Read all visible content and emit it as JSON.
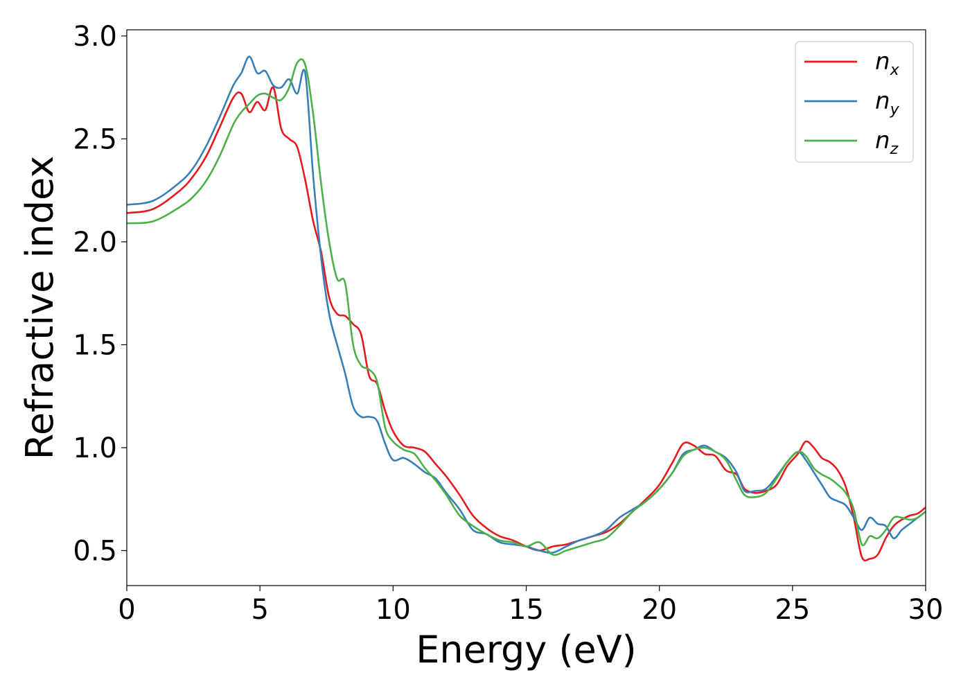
{
  "chart_data": {
    "type": "line",
    "xlabel": "Energy (eV)",
    "ylabel": "Refractive index",
    "xlim": [
      0,
      30
    ],
    "ylim": [
      0.33,
      3.03
    ],
    "xticks": [
      0,
      5,
      10,
      15,
      20,
      25,
      30
    ],
    "xtick_labels": [
      "0",
      "5",
      "10",
      "15",
      "20",
      "25",
      "30"
    ],
    "yticks": [
      0.5,
      1.0,
      1.5,
      2.0,
      2.5,
      3.0
    ],
    "ytick_labels": [
      "0.5",
      "1.0",
      "1.5",
      "2.0",
      "2.5",
      "3.0"
    ],
    "grid": false,
    "legend_position": "top-right",
    "series": [
      {
        "name": "n",
        "subscript": "x",
        "color": "#e41a1c",
        "x": [
          0,
          1,
          2,
          2.5,
          3,
          3.5,
          4,
          4.3,
          4.6,
          4.9,
          5.2,
          5.5,
          5.8,
          6.1,
          6.4,
          6.7,
          7.0,
          7.3,
          7.6,
          7.9,
          8.2,
          8.5,
          8.8,
          9.1,
          9.4,
          9.7,
          10.0,
          10.4,
          10.8,
          11.2,
          11.6,
          12.0,
          12.5,
          13.0,
          13.5,
          14.0,
          14.5,
          15.0,
          15.5,
          16.0,
          16.5,
          17.0,
          17.5,
          18.0,
          18.5,
          19.0,
          19.5,
          20.0,
          20.5,
          20.9,
          21.3,
          21.7,
          22.1,
          22.5,
          22.9,
          23.2,
          23.6,
          24.0,
          24.4,
          24.8,
          25.2,
          25.5,
          25.8,
          26.1,
          26.4,
          26.7,
          27.0,
          27.3,
          27.6,
          27.9,
          28.2,
          28.5,
          28.8,
          29.1,
          29.4,
          29.7,
          30.0
        ],
        "y": [
          2.14,
          2.16,
          2.25,
          2.32,
          2.42,
          2.56,
          2.7,
          2.72,
          2.63,
          2.68,
          2.64,
          2.75,
          2.55,
          2.5,
          2.46,
          2.3,
          2.1,
          1.95,
          1.73,
          1.65,
          1.64,
          1.6,
          1.55,
          1.35,
          1.31,
          1.18,
          1.08,
          1.01,
          1.0,
          0.98,
          0.92,
          0.86,
          0.77,
          0.67,
          0.61,
          0.57,
          0.55,
          0.52,
          0.5,
          0.52,
          0.53,
          0.55,
          0.57,
          0.59,
          0.63,
          0.69,
          0.75,
          0.82,
          0.93,
          1.02,
          1.01,
          0.97,
          0.96,
          0.89,
          0.87,
          0.8,
          0.78,
          0.79,
          0.82,
          0.91,
          0.97,
          1.03,
          1.0,
          0.95,
          0.93,
          0.89,
          0.81,
          0.66,
          0.47,
          0.46,
          0.48,
          0.56,
          0.62,
          0.65,
          0.67,
          0.68,
          0.71
        ]
      },
      {
        "name": "n",
        "subscript": "y",
        "color": "#377eb8",
        "x": [
          0,
          1,
          2,
          2.5,
          3,
          3.5,
          4,
          4.3,
          4.6,
          4.9,
          5.2,
          5.5,
          5.8,
          6.1,
          6.4,
          6.7,
          7.0,
          7.3,
          7.6,
          7.9,
          8.2,
          8.5,
          8.8,
          9.1,
          9.4,
          9.7,
          10.0,
          10.4,
          10.8,
          11.2,
          11.6,
          12.0,
          12.5,
          13.0,
          13.5,
          14.0,
          14.5,
          15.0,
          15.5,
          16.0,
          16.5,
          17.0,
          17.5,
          18.0,
          18.5,
          19.0,
          19.5,
          20.0,
          20.5,
          20.9,
          21.3,
          21.7,
          22.1,
          22.5,
          22.9,
          23.2,
          23.6,
          24.0,
          24.4,
          24.8,
          25.2,
          25.5,
          25.8,
          26.1,
          26.4,
          26.7,
          27.0,
          27.3,
          27.6,
          27.9,
          28.2,
          28.5,
          28.8,
          29.1,
          29.4,
          29.7,
          30.0
        ],
        "y": [
          2.18,
          2.2,
          2.29,
          2.36,
          2.47,
          2.61,
          2.76,
          2.82,
          2.9,
          2.82,
          2.83,
          2.76,
          2.75,
          2.79,
          2.72,
          2.82,
          2.32,
          1.92,
          1.65,
          1.5,
          1.36,
          1.2,
          1.15,
          1.15,
          1.13,
          1.02,
          0.94,
          0.95,
          0.92,
          0.88,
          0.85,
          0.78,
          0.7,
          0.6,
          0.58,
          0.54,
          0.53,
          0.52,
          0.5,
          0.49,
          0.52,
          0.55,
          0.57,
          0.6,
          0.66,
          0.7,
          0.74,
          0.8,
          0.88,
          0.97,
          0.99,
          1.01,
          0.98,
          0.95,
          0.88,
          0.79,
          0.79,
          0.8,
          0.86,
          0.93,
          0.98,
          0.94,
          0.88,
          0.82,
          0.76,
          0.74,
          0.72,
          0.66,
          0.6,
          0.66,
          0.63,
          0.62,
          0.56,
          0.6,
          0.63,
          0.66,
          0.69
        ]
      },
      {
        "name": "n",
        "subscript": "z",
        "color": "#4daf4a",
        "x": [
          0,
          1,
          2,
          2.5,
          3,
          3.5,
          4,
          4.3,
          4.6,
          4.9,
          5.2,
          5.5,
          5.8,
          6.1,
          6.4,
          6.7,
          7.0,
          7.3,
          7.6,
          7.9,
          8.2,
          8.5,
          8.8,
          9.1,
          9.4,
          9.7,
          10.0,
          10.4,
          10.8,
          11.2,
          11.6,
          12.0,
          12.5,
          13.0,
          13.5,
          14.0,
          14.5,
          15.0,
          15.5,
          16.0,
          16.5,
          17.0,
          17.5,
          18.0,
          18.5,
          19.0,
          19.5,
          20.0,
          20.5,
          20.9,
          21.3,
          21.7,
          22.1,
          22.5,
          22.9,
          23.2,
          23.6,
          24.0,
          24.4,
          24.8,
          25.2,
          25.5,
          25.8,
          26.1,
          26.4,
          26.7,
          27.0,
          27.3,
          27.6,
          27.9,
          28.2,
          28.5,
          28.8,
          29.1,
          29.4,
          29.7,
          30.0
        ],
        "y": [
          2.09,
          2.1,
          2.17,
          2.22,
          2.3,
          2.42,
          2.57,
          2.63,
          2.67,
          2.71,
          2.72,
          2.7,
          2.69,
          2.75,
          2.87,
          2.86,
          2.62,
          2.28,
          2.0,
          1.82,
          1.8,
          1.5,
          1.4,
          1.38,
          1.32,
          1.1,
          1.03,
          0.99,
          0.97,
          0.9,
          0.84,
          0.77,
          0.67,
          0.62,
          0.58,
          0.55,
          0.54,
          0.52,
          0.54,
          0.48,
          0.5,
          0.52,
          0.54,
          0.56,
          0.62,
          0.69,
          0.74,
          0.8,
          0.88,
          0.96,
          0.99,
          1.0,
          0.98,
          0.94,
          0.84,
          0.77,
          0.76,
          0.78,
          0.85,
          0.93,
          0.98,
          0.96,
          0.9,
          0.87,
          0.85,
          0.82,
          0.78,
          0.7,
          0.53,
          0.57,
          0.56,
          0.6,
          0.66,
          0.66,
          0.65,
          0.66,
          0.69
        ]
      }
    ]
  }
}
